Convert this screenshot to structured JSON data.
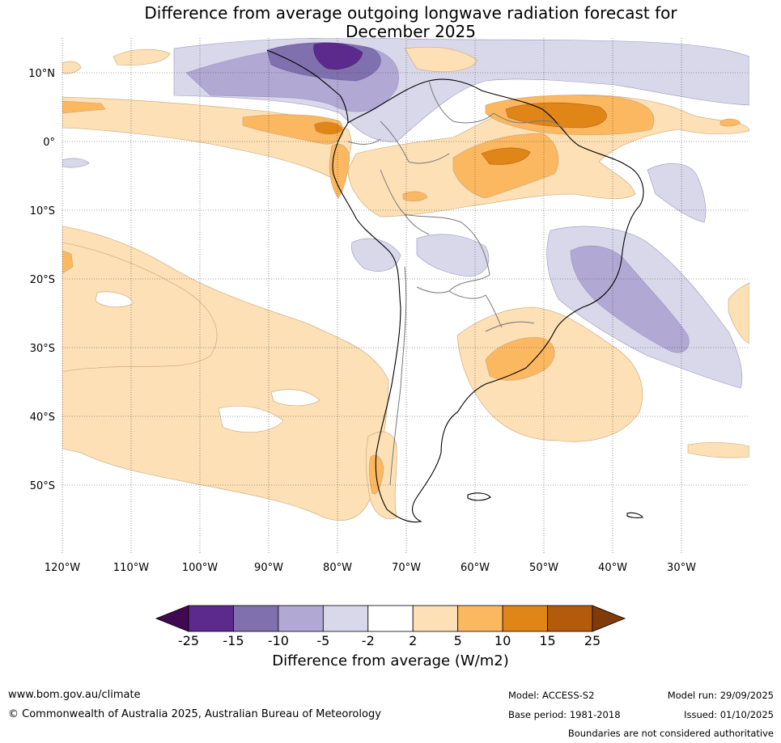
{
  "title": {
    "line1": "Difference from average outgoing longwave radiation forecast for",
    "line2": "December 2025"
  },
  "map": {
    "lat_labels": [
      "10°N",
      "0°",
      "10°S",
      "20°S",
      "30°S",
      "40°S",
      "50°S"
    ],
    "lon_labels": [
      "120°W",
      "110°W",
      "100°W",
      "90°W",
      "80°W",
      "70°W",
      "60°W",
      "50°W",
      "40°W",
      "30°W"
    ],
    "lon_range": [
      -120,
      -20
    ],
    "lat_range": [
      -60,
      15
    ]
  },
  "colorbar": {
    "ticks": [
      "-25",
      "-15",
      "-10",
      "-5",
      "-2",
      "2",
      "5",
      "10",
      "15",
      "25"
    ],
    "colors": [
      "#3f0a52",
      "#5c2a8c",
      "#8070ae",
      "#b1a8d3",
      "#d9d8eb",
      "#ffffff",
      "#fde0b5",
      "#fbb861",
      "#e08618",
      "#b35a0c",
      "#7f3b08"
    ],
    "label": "Difference from average (W/m2)"
  },
  "footer": {
    "url": "www.bom.gov.au/climate",
    "copyright": "© Commonwealth of Australia 2025, Australian Bureau of Meteorology",
    "model": "Model: ACCESS-S2",
    "base_period": "Base period: 1981-2018",
    "model_run": "Model run: 29/09/2025",
    "issued": "Issued: 01/10/2025",
    "boundaries": "Boundaries are not considered authoritative"
  }
}
